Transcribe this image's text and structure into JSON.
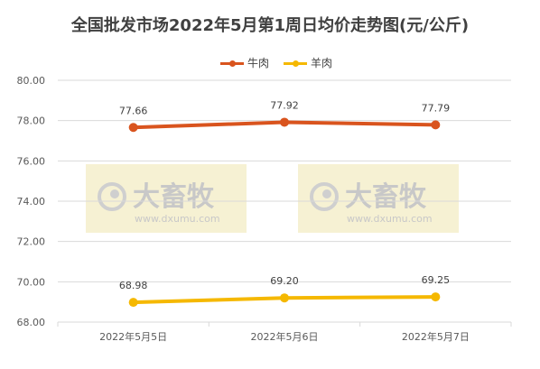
{
  "watermark": {
    "brand": "大畜牧",
    "url": "www.dxumu.com"
  },
  "chart_data": {
    "type": "line",
    "title": "全国批发市场2022年5月第1周日均价走势图(元/公斤)",
    "categories": [
      "2022年5月5日",
      "2022年5月6日",
      "2022年5月7日"
    ],
    "ylim": [
      68.0,
      80.0
    ],
    "yticks": [
      "68.00",
      "70.00",
      "72.00",
      "74.00",
      "76.00",
      "78.00",
      "80.00"
    ],
    "grid": true,
    "legend_position": "top",
    "series": [
      {
        "name": "牛肉",
        "color": "#d9541e",
        "values": [
          77.66,
          77.92,
          77.79
        ],
        "labels": [
          "77.66",
          "77.92",
          "77.79"
        ]
      },
      {
        "name": "羊肉",
        "color": "#f5b800",
        "values": [
          68.98,
          69.2,
          69.25
        ],
        "labels": [
          "68.98",
          "69.20",
          "69.25"
        ]
      }
    ]
  }
}
